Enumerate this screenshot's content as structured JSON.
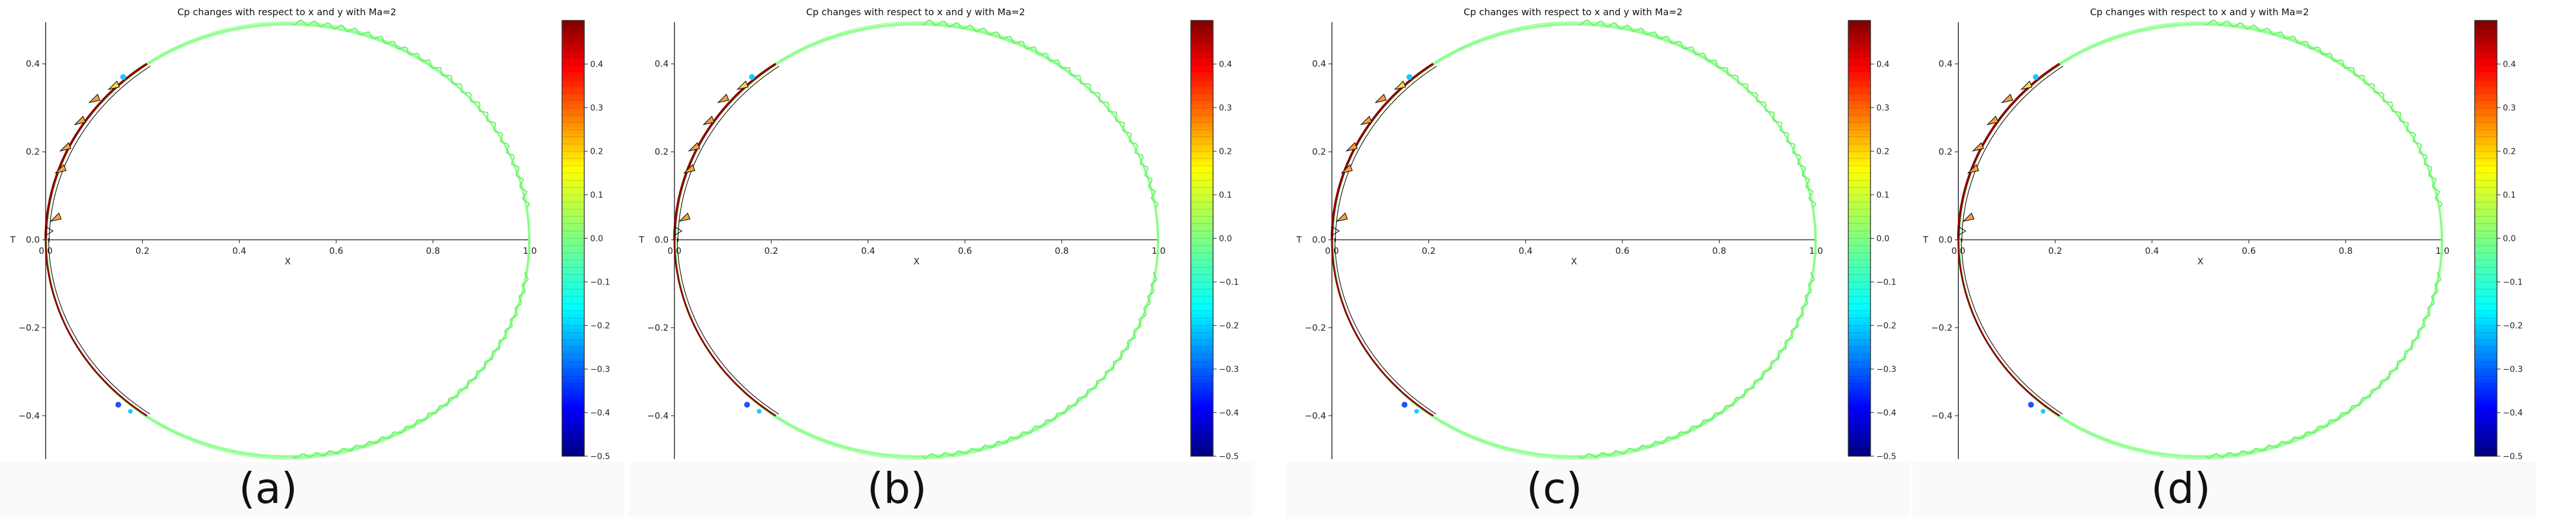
{
  "chart_data": [
    {
      "panel": "(a)",
      "type": "contour",
      "title": "Cp changes with respect to x and y with Ma=2",
      "xlabel": "X",
      "ylabel": "T",
      "xlim": [
        0.0,
        1.0
      ],
      "ylim": [
        -0.5,
        0.5
      ],
      "x_ticks": [
        "0.0",
        "0.2",
        "0.4",
        "0.6",
        "0.8",
        "1.0"
      ],
      "y_ticks": [
        "0.4",
        "0.2",
        "0.0",
        "−0.2",
        "−0.4"
      ],
      "colorbar": {
        "colormap": "jet",
        "min": -0.5,
        "max": 0.5,
        "ticks": [
          "0.4",
          "0.3",
          "0.2",
          "0.1",
          "0.0",
          "−0.1",
          "−0.2",
          "−0.3",
          "−0.4",
          "−0.5"
        ]
      },
      "caption": "(a)"
    },
    {
      "panel": "(b)",
      "type": "contour",
      "title": "Cp changes with respect to x and y with Ma=2",
      "xlabel": "X",
      "ylabel": "T",
      "xlim": [
        0.0,
        1.0
      ],
      "ylim": [
        -0.5,
        0.5
      ],
      "x_ticks": [
        "0.0",
        "0.2",
        "0.4",
        "0.6",
        "0.8",
        "1.0"
      ],
      "y_ticks": [
        "0.4",
        "0.2",
        "0.0",
        "−0.2",
        "−0.4"
      ],
      "colorbar": {
        "colormap": "jet",
        "min": -0.5,
        "max": 0.5,
        "ticks": [
          "0.4",
          "0.3",
          "0.2",
          "0.1",
          "0.0",
          "−0.1",
          "−0.2",
          "−0.3",
          "−0.4",
          "−0.5"
        ]
      },
      "caption": "(b)"
    },
    {
      "panel": "(c)",
      "type": "contour",
      "title": "Cp changes with respect to x and y with Ma=2",
      "xlabel": "X",
      "ylabel": "T",
      "xlim": [
        0.0,
        1.0
      ],
      "ylim": [
        -0.5,
        0.5
      ],
      "x_ticks": [
        "0.0",
        "0.2",
        "0.4",
        "0.6",
        "0.8",
        "1.0"
      ],
      "y_ticks": [
        "0.4",
        "0.2",
        "0.0",
        "−0.2",
        "−0.4"
      ],
      "colorbar": {
        "colormap": "jet",
        "min": -0.5,
        "max": 0.5,
        "ticks": [
          "0.4",
          "0.3",
          "0.2",
          "0.1",
          "0.0",
          "−0.1",
          "−0.2",
          "−0.3",
          "−0.4",
          "−0.5"
        ]
      },
      "caption": "(c)"
    },
    {
      "panel": "(d)",
      "type": "contour",
      "title": "Cp changes with respect to x and y with Ma=2",
      "xlabel": "X",
      "ylabel": "T",
      "xlim": [
        0.0,
        1.0
      ],
      "ylim": [
        -0.5,
        0.5
      ],
      "x_ticks": [
        "0.0",
        "0.2",
        "0.4",
        "0.6",
        "0.8",
        "1.0"
      ],
      "y_ticks": [
        "0.4",
        "0.2",
        "0.0",
        "−0.2",
        "−0.4"
      ],
      "colorbar": {
        "colormap": "jet",
        "min": -0.5,
        "max": 0.5,
        "ticks": [
          "0.4",
          "0.3",
          "0.2",
          "0.1",
          "0.0",
          "−0.1",
          "−0.2",
          "−0.3",
          "−0.4",
          "−0.5"
        ]
      },
      "caption": "(d)"
    }
  ]
}
